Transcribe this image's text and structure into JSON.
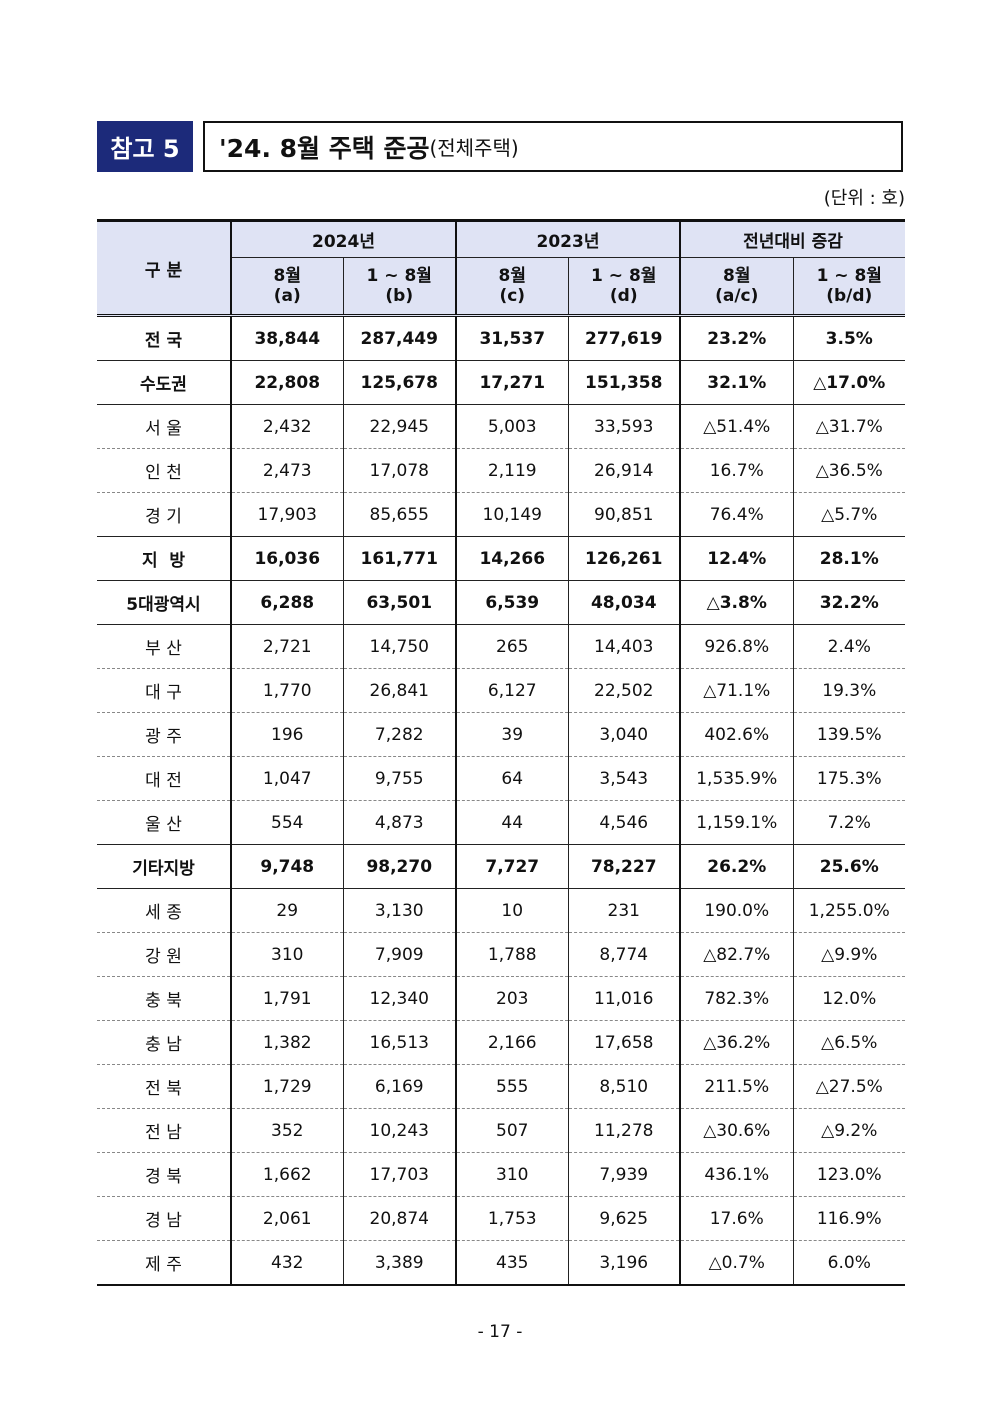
{
  "header": {
    "badge": "참고 5",
    "title": "'24. 8월 주택 준공",
    "title_note": "(전체주택)",
    "unit": "(단위 : 호)"
  },
  "table": {
    "row_header": "구 분",
    "groups": [
      {
        "name": "2024년",
        "columns": [
          {
            "label": "8월",
            "sub": "(a)"
          },
          {
            "label": "1 ~ 8월",
            "sub": "(b)"
          }
        ]
      },
      {
        "name": "2023년",
        "columns": [
          {
            "label": "8월",
            "sub": "(c)"
          },
          {
            "label": "1 ~ 8월",
            "sub": "(d)"
          }
        ]
      },
      {
        "name": "전년대비 증감",
        "columns": [
          {
            "label": "8월",
            "sub": "(a/c)"
          },
          {
            "label": "1 ~ 8월",
            "sub": "(b/d)"
          }
        ]
      }
    ],
    "rows": [
      {
        "label": "전 국",
        "bold": true,
        "cells": [
          "38,844",
          "287,449",
          "31,537",
          "277,619",
          "23.2%",
          "3.5%"
        ]
      },
      {
        "label": "수도권",
        "bold": true,
        "cells": [
          "22,808",
          "125,678",
          "17,271",
          "151,358",
          "32.1%",
          "△17.0%"
        ]
      },
      {
        "label": "서 울",
        "bold": false,
        "cells": [
          "2,432",
          "22,945",
          "5,003",
          "33,593",
          "△51.4%",
          "△31.7%"
        ]
      },
      {
        "label": "인 천",
        "bold": false,
        "cells": [
          "2,473",
          "17,078",
          "2,119",
          "26,914",
          "16.7%",
          "△36.5%"
        ]
      },
      {
        "label": "경 기",
        "bold": false,
        "cells": [
          "17,903",
          "85,655",
          "10,149",
          "90,851",
          "76.4%",
          "△5.7%"
        ]
      },
      {
        "label": "지  방",
        "bold": true,
        "cells": [
          "16,036",
          "161,771",
          "14,266",
          "126,261",
          "12.4%",
          "28.1%"
        ]
      },
      {
        "label": "5대광역시",
        "bold": true,
        "cells": [
          "6,288",
          "63,501",
          "6,539",
          "48,034",
          "△3.8%",
          "32.2%"
        ]
      },
      {
        "label": "부 산",
        "bold": false,
        "cells": [
          "2,721",
          "14,750",
          "265",
          "14,403",
          "926.8%",
          "2.4%"
        ]
      },
      {
        "label": "대 구",
        "bold": false,
        "cells": [
          "1,770",
          "26,841",
          "6,127",
          "22,502",
          "△71.1%",
          "19.3%"
        ]
      },
      {
        "label": "광 주",
        "bold": false,
        "cells": [
          "196",
          "7,282",
          "39",
          "3,040",
          "402.6%",
          "139.5%"
        ]
      },
      {
        "label": "대 전",
        "bold": false,
        "cells": [
          "1,047",
          "9,755",
          "64",
          "3,543",
          "1,535.9%",
          "175.3%"
        ]
      },
      {
        "label": "울 산",
        "bold": false,
        "cells": [
          "554",
          "4,873",
          "44",
          "4,546",
          "1,159.1%",
          "7.2%"
        ]
      },
      {
        "label": "기타지방",
        "bold": true,
        "cells": [
          "9,748",
          "98,270",
          "7,727",
          "78,227",
          "26.2%",
          "25.6%"
        ]
      },
      {
        "label": "세 종",
        "bold": false,
        "cells": [
          "29",
          "3,130",
          "10",
          "231",
          "190.0%",
          "1,255.0%"
        ]
      },
      {
        "label": "강 원",
        "bold": false,
        "cells": [
          "310",
          "7,909",
          "1,788",
          "8,774",
          "△82.7%",
          "△9.9%"
        ]
      },
      {
        "label": "충 북",
        "bold": false,
        "cells": [
          "1,791",
          "12,340",
          "203",
          "11,016",
          "782.3%",
          "12.0%"
        ]
      },
      {
        "label": "충 남",
        "bold": false,
        "cells": [
          "1,382",
          "16,513",
          "2,166",
          "17,658",
          "△36.2%",
          "△6.5%"
        ]
      },
      {
        "label": "전 북",
        "bold": false,
        "cells": [
          "1,729",
          "6,169",
          "555",
          "8,510",
          "211.5%",
          "△27.5%"
        ]
      },
      {
        "label": "전 남",
        "bold": false,
        "cells": [
          "352",
          "10,243",
          "507",
          "11,278",
          "△30.6%",
          "△9.2%"
        ]
      },
      {
        "label": "경 북",
        "bold": false,
        "cells": [
          "1,662",
          "17,703",
          "310",
          "7,939",
          "436.1%",
          "123.0%"
        ]
      },
      {
        "label": "경 남",
        "bold": false,
        "cells": [
          "2,061",
          "20,874",
          "1,753",
          "9,625",
          "17.6%",
          "116.9%"
        ]
      },
      {
        "label": "제 주",
        "bold": false,
        "cells": [
          "432",
          "3,389",
          "435",
          "3,196",
          "△0.7%",
          "6.0%"
        ]
      }
    ]
  },
  "footer": {
    "page": "- 17 -"
  }
}
